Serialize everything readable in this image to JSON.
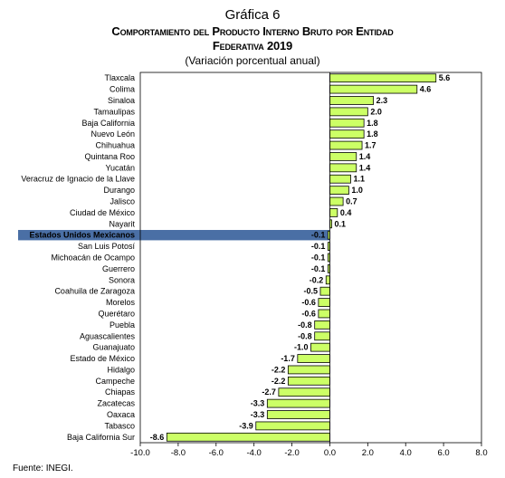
{
  "header": {
    "number": "Gráfica 6",
    "title_line1": "Comportamiento del Producto Interno Bruto por Entidad",
    "title_line2": "Federativa 2019",
    "subtitle": "(Variación porcentual anual)"
  },
  "source": "Fuente: INEGI.",
  "colors": {
    "bar_fill": "#ccff66",
    "bar_stroke": "#000000",
    "highlight_band": "#4a6fa5",
    "highlight_text": "#ffffff"
  },
  "chart_data": {
    "type": "bar",
    "orientation": "horizontal",
    "title": "Comportamiento del Producto Interno Bruto por Entidad Federativa 2019",
    "subtitle": "(Variación porcentual anual)",
    "xlim": [
      -10,
      8
    ],
    "xticks": [
      "-10.0",
      "-8.0",
      "-6.0",
      "-4.0",
      "-2.0",
      "0.0",
      "2.0",
      "4.0",
      "6.0",
      "8.0"
    ],
    "xtick_values": [
      -10,
      -8,
      -6,
      -4,
      -2,
      0,
      2,
      4,
      6,
      8
    ],
    "grid": false,
    "highlight_category": "Estados Unidos Mexicanos",
    "categories": [
      "Tlaxcala",
      "Colima",
      "Sinaloa",
      "Tamaulipas",
      "Baja California",
      "Nuevo León",
      "Chihuahua",
      "Quintana Roo",
      "Yucatán",
      "Veracruz de Ignacio de la Llave",
      "Durango",
      "Jalisco",
      "Ciudad de México",
      "Nayarit",
      "Estados Unidos Mexicanos",
      "San Luis Potosí",
      "Michoacán de Ocampo",
      "Guerrero",
      "Sonora",
      "Coahuila de Zaragoza",
      "Morelos",
      "Querétaro",
      "Puebla",
      "Aguascalientes",
      "Guanajuato",
      "Estado de México",
      "Hidalgo",
      "Campeche",
      "Chiapas",
      "Zacatecas",
      "Oaxaca",
      "Tabasco",
      "Baja California Sur"
    ],
    "values": [
      5.6,
      4.6,
      2.3,
      2.0,
      1.8,
      1.8,
      1.7,
      1.4,
      1.4,
      1.1,
      1.0,
      0.7,
      0.4,
      0.1,
      -0.1,
      -0.1,
      -0.1,
      -0.1,
      -0.2,
      -0.5,
      -0.6,
      -0.6,
      -0.8,
      -0.8,
      -1.0,
      -1.7,
      -2.2,
      -2.2,
      -2.7,
      -3.3,
      -3.3,
      -3.9,
      -8.6
    ],
    "value_labels": [
      "5.6",
      "4.6",
      "2.3",
      "2.0",
      "1.8",
      "1.8",
      "1.7",
      "1.4",
      "1.4",
      "1.1",
      "1.0",
      "0.7",
      "0.4",
      "0.1",
      "-0.1",
      "-0.1",
      "-0.1",
      "-0.1",
      "-0.2",
      "-0.5",
      "-0.6",
      "-0.6",
      "-0.8",
      "-0.8",
      "-1.0",
      "-1.7",
      "-2.2",
      "-2.2",
      "-2.7",
      "-3.3",
      "-3.3",
      "-3.9",
      "-8.6"
    ]
  }
}
